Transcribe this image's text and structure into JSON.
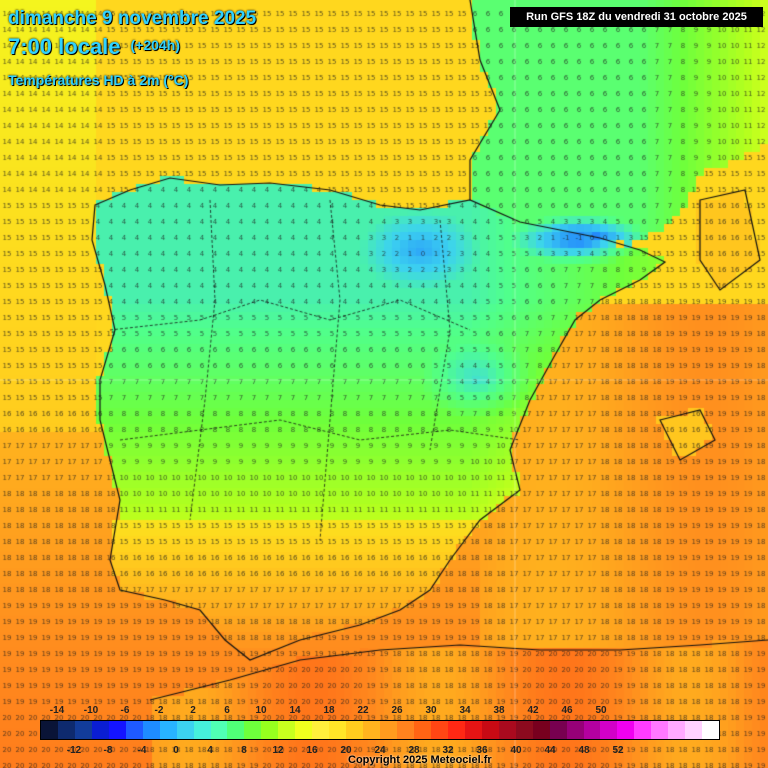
{
  "header": {
    "date_line": "dimanche 9 novembre 2025",
    "time_line": "7:00 locale",
    "lead_time": "(+204h)",
    "variable_line": "Températures HD à 2m (°C)",
    "run_info": "Run GFS 18Z du vendredi 31 octobre 2025"
  },
  "legend": {
    "top_labels": [
      "-14",
      "-10",
      "-6",
      "-2",
      "2",
      "6",
      "10",
      "14",
      "18",
      "22",
      "26",
      "30",
      "34",
      "38",
      "42",
      "46",
      "50"
    ],
    "bottom_labels": [
      "-12",
      "-8",
      "-4",
      "0",
      "4",
      "8",
      "12",
      "16",
      "20",
      "24",
      "28",
      "32",
      "36",
      "40",
      "44",
      "48",
      "52"
    ],
    "colors": [
      "#0a1437",
      "#0e2a6e",
      "#123c9a",
      "#0a1ed2",
      "#1414ff",
      "#1e5aff",
      "#1e8cff",
      "#28b4ff",
      "#3cd2f0",
      "#46f0dc",
      "#50ffb4",
      "#50ff78",
      "#6eff3c",
      "#96ff1e",
      "#c8ff1e",
      "#f0ff1e",
      "#fff03c",
      "#ffe628",
      "#ffcd1e",
      "#ffb41e",
      "#ff9b1e",
      "#ff821e",
      "#ff6414",
      "#ff4614",
      "#ff2814",
      "#e61414",
      "#c80a14",
      "#aa0a1e",
      "#8c0a1e",
      "#78001e",
      "#780050",
      "#960078",
      "#b400a0",
      "#d200c8",
      "#f000f0",
      "#ff3cff",
      "#ff78ff",
      "#ffaaff",
      "#ffd2ff",
      "#ffffff"
    ]
  },
  "footer": {
    "copyright": "Copyright 2025 Meteociel.fr"
  }
}
